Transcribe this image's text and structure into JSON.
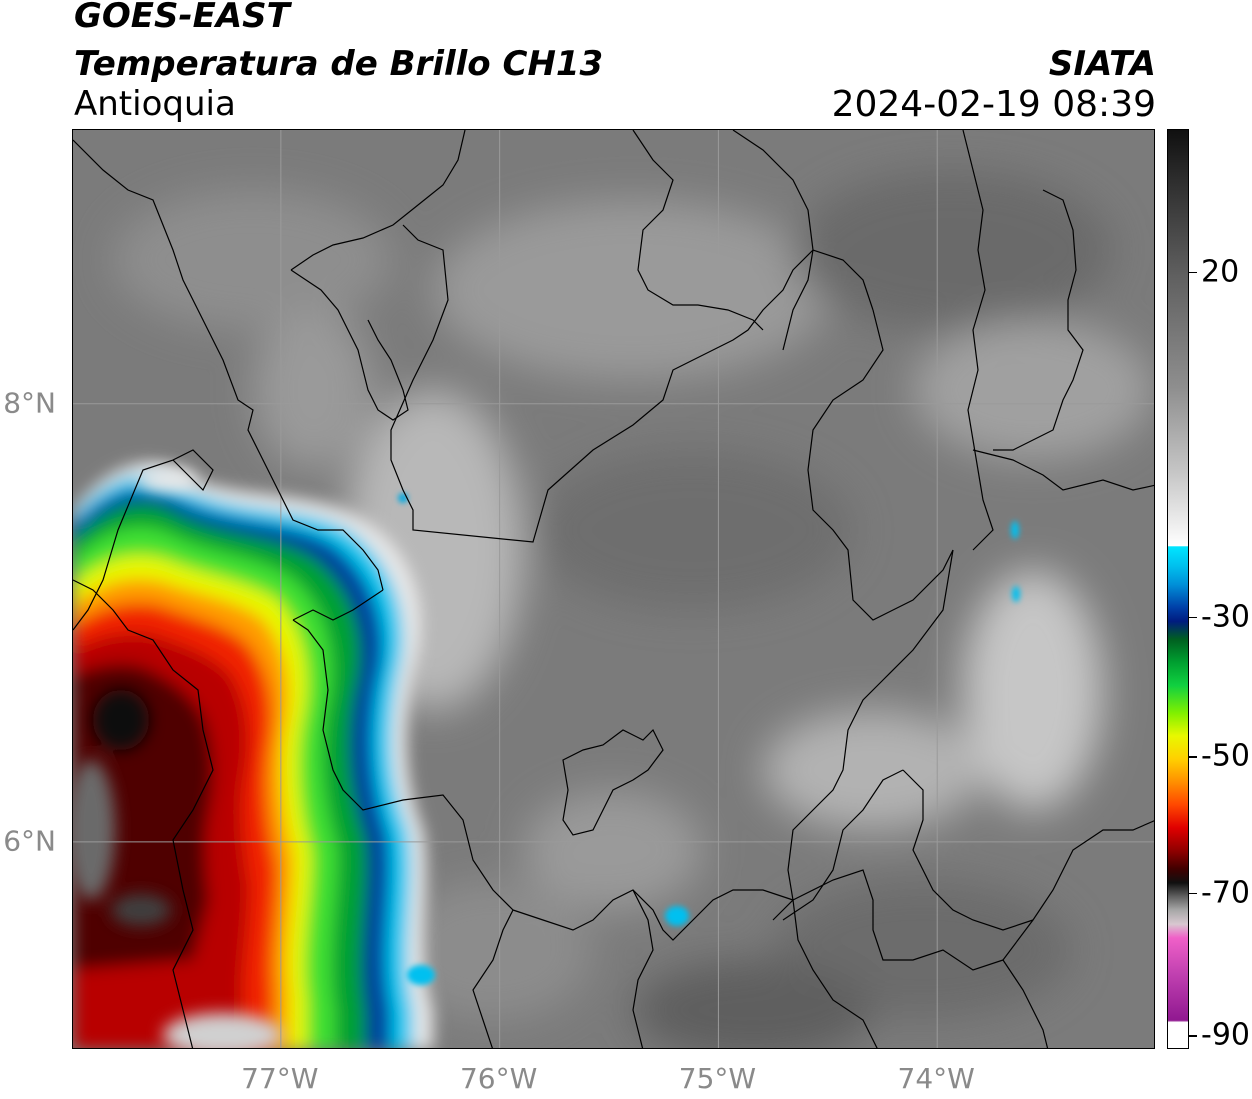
{
  "header": {
    "satellite": "GOES-EAST",
    "product": "Temperatura de Brillo CH13",
    "region": "Antioquia",
    "organization": "SIATA",
    "datetime": "2024-02-19 08:39"
  },
  "map": {
    "projection": "lat-lon",
    "lat_range": [
      5.05,
      9.25
    ],
    "lon_range": [
      -77.95,
      -73.0
    ],
    "lat_ticks": [
      {
        "value": 8,
        "label": "8°N"
      },
      {
        "value": 6,
        "label": "6°N"
      }
    ],
    "lon_ticks": [
      {
        "value": -77,
        "label": "77°W"
      },
      {
        "value": -76,
        "label": "76°W"
      },
      {
        "value": -75,
        "label": "75°W"
      },
      {
        "value": -74,
        "label": "74°W"
      }
    ],
    "gridlines": true
  },
  "colorbar": {
    "units_range": [
      -90,
      40
    ],
    "ticks": [
      {
        "value": 20,
        "label": "20"
      },
      {
        "value": -30,
        "label": "-30"
      },
      {
        "value": -50,
        "label": "-50"
      },
      {
        "value": -70,
        "label": "-70"
      },
      {
        "value": -90,
        "label": "-90"
      }
    ]
  },
  "colors": {
    "background_gray": "#7b7b7b",
    "cold_cloud_core": "#e00000",
    "gridline": "#9a9a9a",
    "boundary": "#000000"
  }
}
